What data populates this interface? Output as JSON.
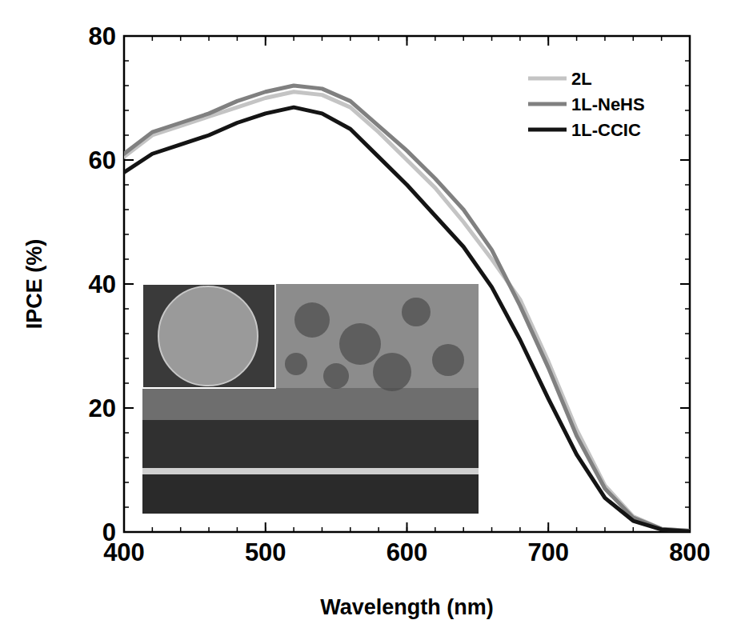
{
  "chart_data": {
    "type": "line",
    "x_label": "Wavelength (nm)",
    "y_label": "IPCE (%)",
    "x": [
      400,
      420,
      440,
      460,
      480,
      500,
      520,
      540,
      560,
      580,
      600,
      620,
      640,
      660,
      680,
      700,
      720,
      740,
      760,
      780,
      800
    ],
    "series": [
      {
        "name": "2L",
        "color": "#c4c4c4",
        "line_style": "solid",
        "values": [
          60.5,
          64,
          65.5,
          67,
          68.5,
          70,
          71,
          70.5,
          68.5,
          64.5,
          60,
          55.5,
          50,
          44,
          37.5,
          27.5,
          16.5,
          7.5,
          2.5,
          0.5,
          0.2
        ]
      },
      {
        "name": "1L-NeHS",
        "color": "#808080",
        "line_style": "solid",
        "values": [
          61,
          64.5,
          66,
          67.5,
          69.5,
          71,
          72,
          71.5,
          69.5,
          65.5,
          61.5,
          57,
          52,
          45.5,
          36.5,
          26.5,
          15.5,
          7,
          2.3,
          0.5,
          0.2
        ]
      },
      {
        "name": "1L-CCIC",
        "color": "#141414",
        "line_style": "solid",
        "values": [
          58,
          61,
          62.5,
          64,
          66,
          67.5,
          68.5,
          67.5,
          65,
          60.5,
          56,
          51,
          46,
          39.5,
          31,
          21.5,
          12.5,
          5.5,
          1.8,
          0.4,
          0.1
        ]
      }
    ],
    "xlim": [
      400,
      800
    ],
    "ylim": [
      0,
      80
    ],
    "xticks": [
      400,
      500,
      600,
      700,
      800
    ],
    "yticks": [
      0,
      20,
      40,
      60,
      80
    ],
    "grid": false,
    "legend": "upper right"
  }
}
